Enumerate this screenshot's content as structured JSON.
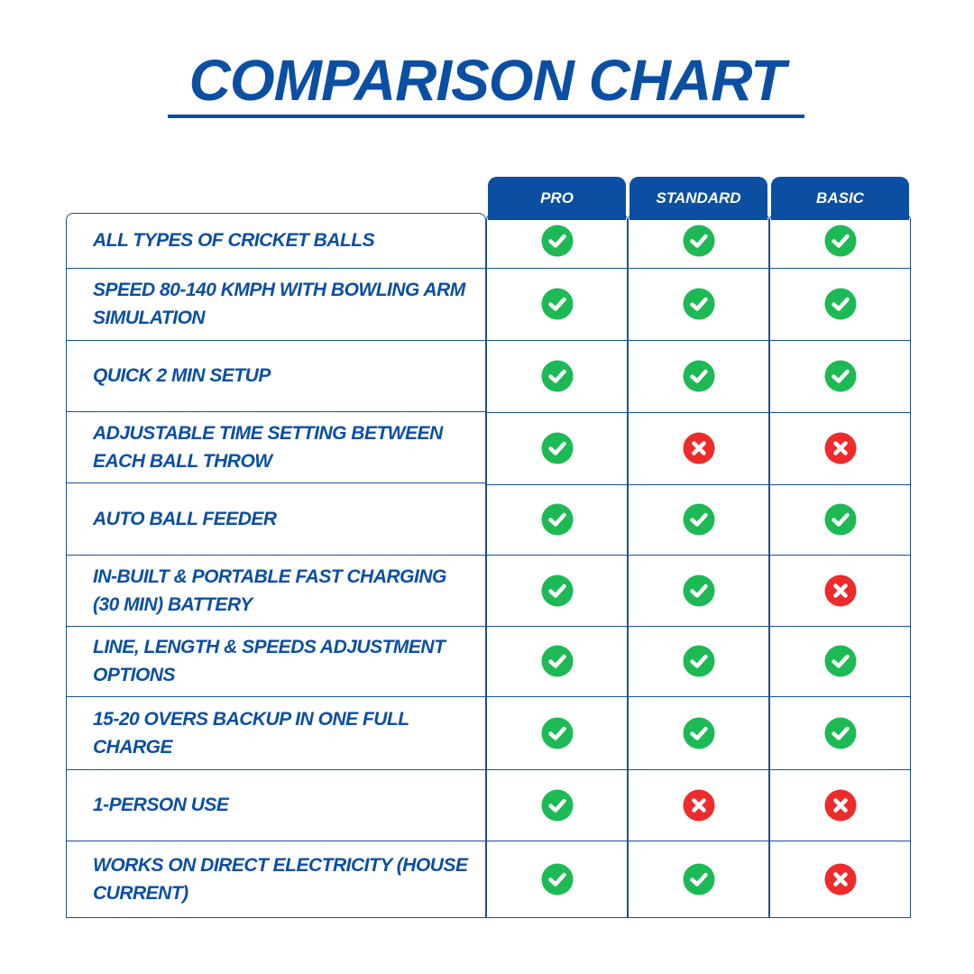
{
  "title": "COMPARISON CHART",
  "colors": {
    "brand": "#0b4fa3",
    "check": "#1db954",
    "cross": "#ee2b2b"
  },
  "chart_data": {
    "type": "table",
    "columns": [
      "PRO",
      "STANDARD",
      "BASIC"
    ],
    "rows": [
      {
        "feature": "ALL TYPES OF CRICKET BALLS",
        "values": [
          "yes",
          "yes",
          "yes"
        ]
      },
      {
        "feature": "SPEED 80-140 KMPH WITH BOWLING ARM SIMULATION",
        "values": [
          "yes",
          "yes",
          "yes"
        ]
      },
      {
        "feature": "QUICK 2 MIN SETUP",
        "values": [
          "yes",
          "yes",
          "yes"
        ]
      },
      {
        "feature": "ADJUSTABLE TIME SETTING BETWEEN EACH BALL THROW",
        "values": [
          "yes",
          "no",
          "no"
        ]
      },
      {
        "feature": "AUTO BALL FEEDER",
        "values": [
          "yes",
          "yes",
          "yes"
        ]
      },
      {
        "feature": "IN-BUILT & PORTABLE FAST CHARGING (30 MIN) BATTERY",
        "values": [
          "yes",
          "yes",
          "no"
        ]
      },
      {
        "feature": "LINE, LENGTH & SPEEDS ADJUSTMENT OPTIONS",
        "values": [
          "yes",
          "yes",
          "yes"
        ]
      },
      {
        "feature": "15-20 OVERS BACKUP IN ONE FULL CHARGE",
        "values": [
          "yes",
          "yes",
          "yes"
        ]
      },
      {
        "feature": "1-PERSON USE",
        "values": [
          "yes",
          "no",
          "no"
        ]
      },
      {
        "feature": "WORKS ON DIRECT ELECTRICITY (HOUSE CURRENT)",
        "values": [
          "yes",
          "yes",
          "no"
        ]
      }
    ]
  }
}
